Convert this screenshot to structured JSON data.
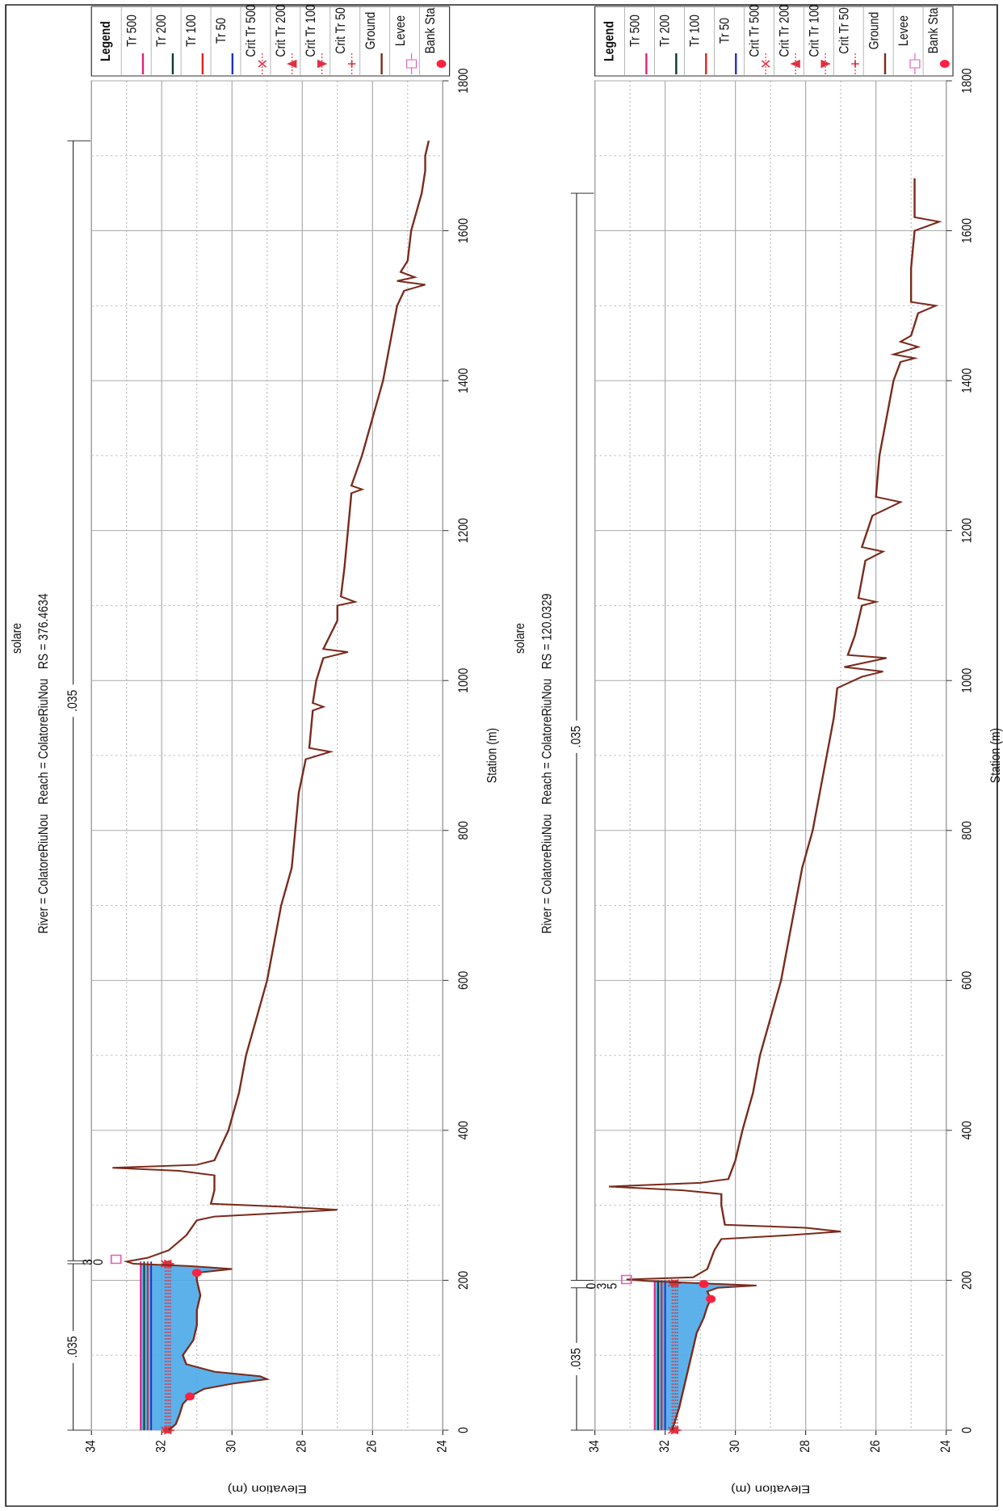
{
  "chart_data": [
    {
      "type": "line",
      "title": "solare",
      "subtitle": "River = ColatoreRiuNou   Reach = ColatoreRiuNou   RS = 376.4634",
      "xlabel": "Station (m)",
      "ylabel": "Elevation (m)",
      "legend_title": "Legend",
      "xlim": [
        0,
        1800
      ],
      "xticks": [
        0,
        200,
        400,
        600,
        800,
        1000,
        1200,
        1400,
        1600,
        1800
      ],
      "ylim": [
        24,
        34
      ],
      "yticks": [
        24,
        26,
        28,
        30,
        32,
        34
      ],
      "grid": true,
      "water_color": "#4aa8e8",
      "roughness": [
        {
          "label": ".035",
          "from": 0,
          "to": 222
        },
        {
          "label": ".035",
          "from": 226,
          "to": 1720
        }
      ],
      "zone_labels": [
        "3",
        "0"
      ],
      "series": [
        {
          "name": "Tr 500",
          "kind": "line",
          "color": "#e0207f",
          "x": [
            0,
            225
          ],
          "values": [
            32.6,
            32.6
          ]
        },
        {
          "name": "Tr 200",
          "kind": "line",
          "color": "#0b3b2b",
          "x": [
            0,
            225
          ],
          "values": [
            32.5,
            32.5
          ]
        },
        {
          "name": "Tr 100",
          "kind": "line",
          "color": "#e02020",
          "x": [
            0,
            225
          ],
          "values": [
            32.4,
            32.4
          ]
        },
        {
          "name": "Tr 50",
          "kind": "line",
          "color": "#2030c0",
          "x": [
            0,
            225
          ],
          "values": [
            32.3,
            32.3
          ]
        },
        {
          "name": "Crit Tr 500",
          "kind": "crit",
          "marker": "x",
          "color": "#e03040",
          "x": [
            0,
            222
          ],
          "values": [
            31.9,
            31.9
          ]
        },
        {
          "name": "Crit Tr 200",
          "kind": "crit",
          "marker": "down",
          "color": "#e03040",
          "x": [
            0,
            222
          ],
          "values": [
            31.85,
            31.85
          ]
        },
        {
          "name": "Crit Tr 100",
          "kind": "crit",
          "marker": "up",
          "color": "#e03040",
          "x": [
            0,
            222
          ],
          "values": [
            31.8,
            31.8
          ]
        },
        {
          "name": "Crit Tr 50",
          "kind": "crit",
          "marker": "plus",
          "color": "#e03040",
          "x": [
            0,
            222
          ],
          "values": [
            31.75,
            31.75
          ]
        },
        {
          "name": "Ground",
          "kind": "ground",
          "color": "#7a2a1a",
          "x": [
            0,
            8,
            20,
            35,
            45,
            55,
            62,
            68,
            72,
            78,
            88,
            100,
            120,
            140,
            160,
            180,
            200,
            210,
            215,
            219,
            222,
            225,
            230,
            240,
            260,
            280,
            285,
            290,
            294,
            298,
            302,
            320,
            340,
            346,
            350,
            354,
            360,
            380,
            400,
            450,
            500,
            550,
            600,
            650,
            700,
            750,
            800,
            850,
            895,
            905,
            910,
            960,
            965,
            970,
            1000,
            1030,
            1038,
            1042,
            1080,
            1100,
            1105,
            1112,
            1150,
            1200,
            1250,
            1255,
            1260,
            1300,
            1350,
            1400,
            1450,
            1500,
            1520,
            1528,
            1533,
            1538,
            1545,
            1560,
            1600,
            1650,
            1680,
            1700,
            1720
          ],
          "values": [
            31.8,
            31.6,
            31.5,
            31.4,
            31.2,
            30.8,
            30.0,
            29.0,
            29.2,
            30.5,
            31.3,
            31.4,
            31.1,
            31.0,
            31.0,
            30.9,
            31.0,
            31.0,
            30.0,
            31.2,
            32.8,
            33.0,
            32.4,
            31.8,
            31.3,
            31.0,
            30.5,
            28.5,
            27.0,
            28.5,
            30.6,
            30.5,
            30.5,
            31.5,
            33.4,
            31.0,
            30.5,
            30.3,
            30.1,
            29.8,
            29.6,
            29.3,
            29.0,
            28.8,
            28.6,
            28.3,
            28.2,
            28.1,
            27.9,
            27.2,
            27.8,
            27.7,
            27.4,
            27.7,
            27.6,
            27.4,
            26.7,
            27.4,
            27.0,
            27.0,
            26.5,
            26.9,
            26.8,
            26.7,
            26.6,
            26.3,
            26.6,
            26.3,
            26.0,
            25.7,
            25.5,
            25.3,
            25.1,
            24.5,
            25.3,
            24.8,
            25.2,
            25.0,
            24.9,
            24.6,
            24.5,
            24.5,
            24.4
          ]
        },
        {
          "name": "Levee",
          "kind": "levee",
          "color": "#e060c0",
          "x": [
            228
          ],
          "values": [
            33.3
          ]
        },
        {
          "name": "Bank Sta",
          "kind": "bank",
          "color": "#ff2040",
          "x": [
            45,
            210
          ],
          "values": [
            31.2,
            31.0
          ]
        }
      ]
    },
    {
      "type": "line",
      "title": "solare",
      "subtitle": "River = ColatoreRiuNou   Reach = ColatoreRiuNou   RS = 120.0329",
      "xlabel": "Station (m)",
      "ylabel": "Elevation (m)",
      "legend_title": "Legend",
      "xlim": [
        0,
        1800
      ],
      "xticks": [
        0,
        200,
        400,
        600,
        800,
        1000,
        1200,
        1400,
        1600,
        1800
      ],
      "ylim": [
        24,
        34
      ],
      "yticks": [
        24,
        26,
        28,
        30,
        32,
        34
      ],
      "grid": true,
      "water_color": "#4aa8e8",
      "roughness": [
        {
          "label": ".035",
          "from": 0,
          "to": 190
        },
        {
          "label": ".035",
          "from": 200,
          "to": 1650
        }
      ],
      "zone_labels": [
        "0",
        "3",
        "5"
      ],
      "series": [
        {
          "name": "Tr 500",
          "kind": "line",
          "color": "#e0207f",
          "x": [
            0,
            200
          ],
          "values": [
            32.3,
            32.3
          ]
        },
        {
          "name": "Tr 200",
          "kind": "line",
          "color": "#0b3b2b",
          "x": [
            0,
            200
          ],
          "values": [
            32.2,
            32.2
          ]
        },
        {
          "name": "Tr 100",
          "kind": "line",
          "color": "#e02020",
          "x": [
            0,
            200
          ],
          "values": [
            32.1,
            32.1
          ]
        },
        {
          "name": "Tr 50",
          "kind": "line",
          "color": "#2030c0",
          "x": [
            0,
            200
          ],
          "values": [
            32.0,
            32.0
          ]
        },
        {
          "name": "Crit Tr 500",
          "kind": "crit",
          "marker": "x",
          "color": "#e03040",
          "x": [
            0,
            196
          ],
          "values": [
            31.8,
            31.8
          ]
        },
        {
          "name": "Crit Tr 200",
          "kind": "crit",
          "marker": "down",
          "color": "#e03040",
          "x": [
            0,
            196
          ],
          "values": [
            31.75,
            31.75
          ]
        },
        {
          "name": "Crit Tr 100",
          "kind": "crit",
          "marker": "up",
          "color": "#e03040",
          "x": [
            0,
            196
          ],
          "values": [
            31.7,
            31.7
          ]
        },
        {
          "name": "Crit Tr 50",
          "kind": "crit",
          "marker": "plus",
          "color": "#e03040",
          "x": [
            0,
            196
          ],
          "values": [
            31.65,
            31.65
          ]
        },
        {
          "name": "Ground",
          "kind": "ground",
          "color": "#7a2a1a",
          "x": [
            0,
            15,
            30,
            50,
            70,
            90,
            110,
            130,
            150,
            165,
            175,
            185,
            190,
            193,
            196,
            199,
            201,
            204,
            215,
            240,
            255,
            260,
            265,
            270,
            274,
            300,
            315,
            320,
            325,
            330,
            335,
            360,
            400,
            450,
            500,
            550,
            600,
            650,
            700,
            750,
            800,
            850,
            900,
            950,
            990,
            1005,
            1012,
            1018,
            1025,
            1030,
            1034,
            1060,
            1100,
            1105,
            1110,
            1160,
            1172,
            1178,
            1220,
            1238,
            1245,
            1300,
            1350,
            1400,
            1425,
            1430,
            1435,
            1445,
            1452,
            1460,
            1490,
            1500,
            1505,
            1550,
            1600,
            1612,
            1618,
            1650,
            1670
          ],
          "values": [
            31.8,
            31.7,
            31.6,
            31.5,
            31.4,
            31.3,
            31.2,
            31.1,
            30.9,
            30.8,
            30.7,
            30.8,
            30.5,
            29.4,
            31.0,
            32.5,
            33.1,
            31.2,
            30.8,
            30.6,
            30.4,
            28.5,
            27.0,
            28.0,
            30.3,
            30.4,
            30.4,
            31.5,
            33.6,
            31.0,
            30.2,
            30.0,
            29.8,
            29.5,
            29.3,
            29.0,
            28.7,
            28.5,
            28.3,
            28.1,
            27.8,
            27.6,
            27.4,
            27.2,
            27.1,
            26.4,
            25.8,
            26.9,
            26.2,
            25.7,
            26.8,
            26.6,
            26.4,
            26.0,
            26.5,
            26.3,
            25.8,
            26.4,
            26.1,
            25.3,
            26.0,
            25.9,
            25.7,
            25.5,
            25.3,
            24.9,
            25.5,
            24.8,
            25.3,
            25.0,
            24.8,
            24.3,
            25.0,
            25.0,
            24.9,
            24.2,
            24.9,
            24.9,
            24.9
          ]
        },
        {
          "name": "Levee",
          "kind": "levee",
          "color": "#e060c0",
          "x": [
            201
          ],
          "values": [
            33.1
          ]
        },
        {
          "name": "Bank Sta",
          "kind": "bank",
          "color": "#ff2040",
          "x": [
            175,
            195
          ],
          "values": [
            30.7,
            30.9
          ]
        }
      ]
    }
  ]
}
